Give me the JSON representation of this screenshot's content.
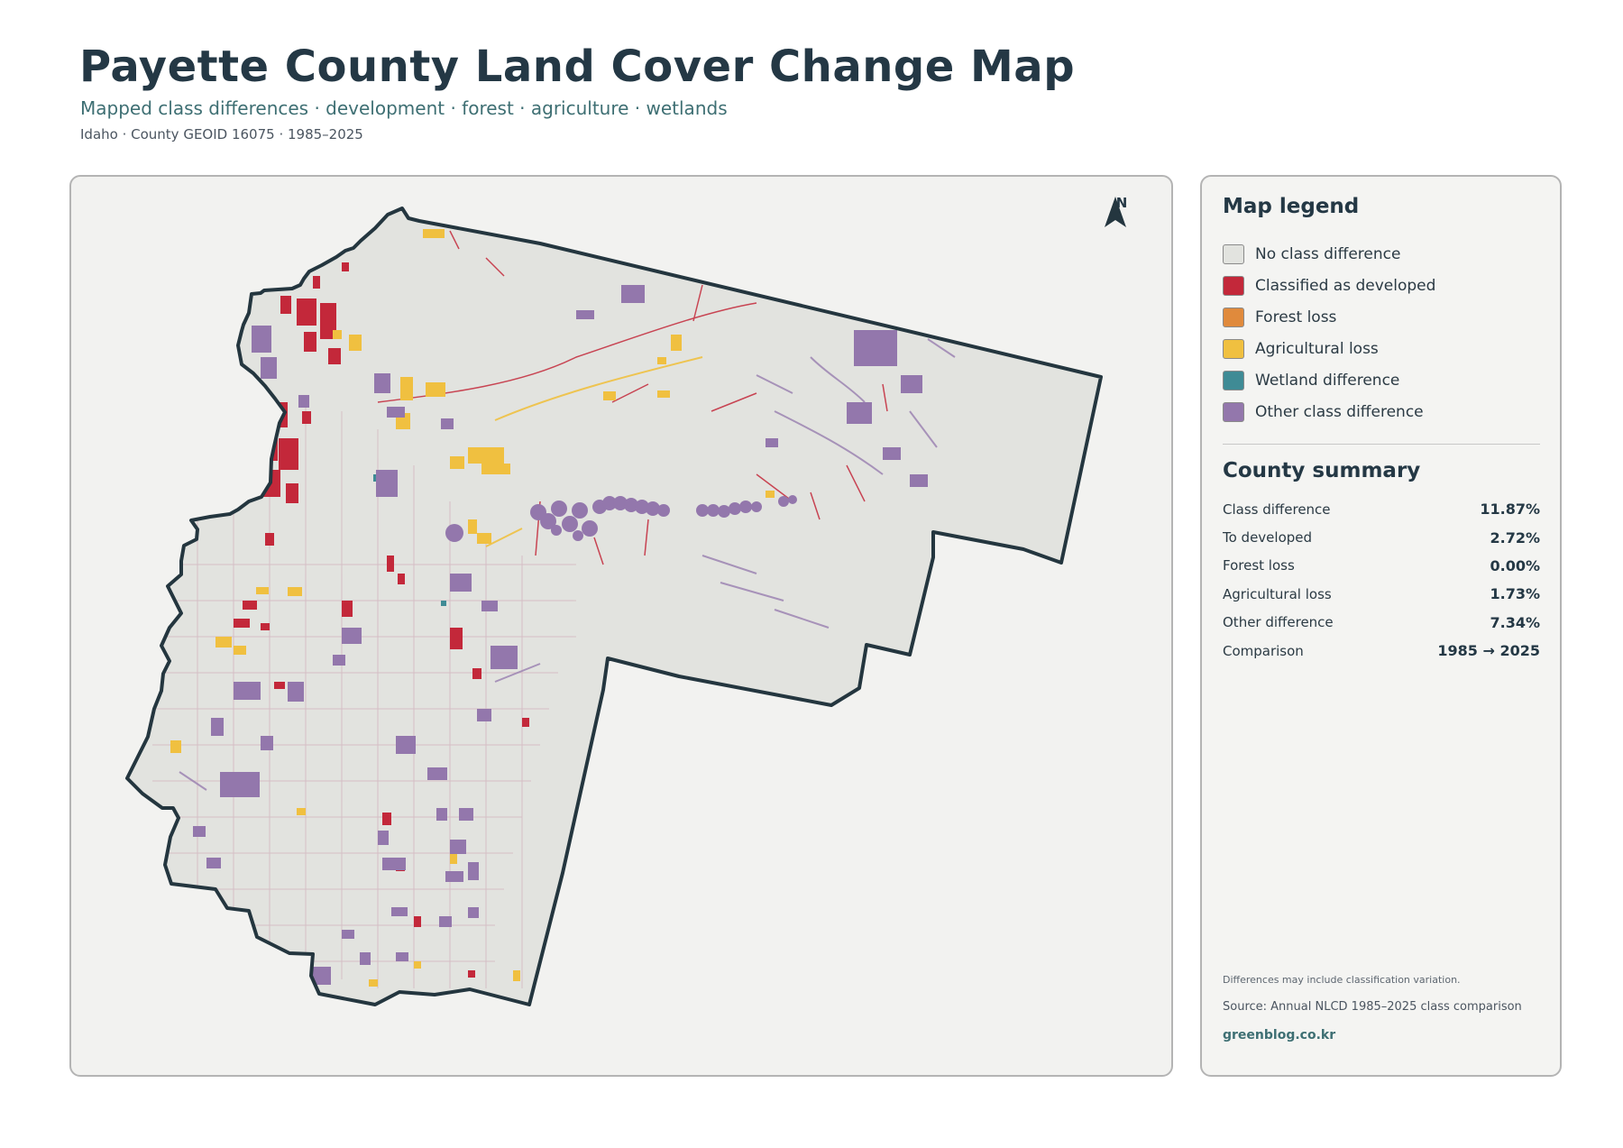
{
  "header": {
    "title": "Payette County Land Cover Change Map",
    "subtitle": "Mapped class differences · development · forest · agriculture · wetlands",
    "meta": "Idaho · County GEOID 16075 · 1985–2025"
  },
  "map": {
    "north_label": "N",
    "colors": {
      "no_difference": "#e2e3df",
      "developed": "#c3283a",
      "forest_loss": "#e08a3c",
      "agricultural_loss": "#f0c040",
      "wetland": "#3f8b95",
      "other": "#9377ac",
      "boundary": "#24363f"
    }
  },
  "legend": {
    "heading": "Map legend",
    "items": [
      {
        "label": "No class difference",
        "color": "#e2e3df"
      },
      {
        "label": "Classified as developed",
        "color": "#c3283a"
      },
      {
        "label": "Forest loss",
        "color": "#e08a3c"
      },
      {
        "label": "Agricultural loss",
        "color": "#f0c040"
      },
      {
        "label": "Wetland difference",
        "color": "#3f8b95"
      },
      {
        "label": "Other class difference",
        "color": "#9377ac"
      }
    ]
  },
  "summary": {
    "heading": "County summary",
    "rows": [
      {
        "label": "Class difference",
        "value": "11.87%"
      },
      {
        "label": "To developed",
        "value": "2.72%"
      },
      {
        "label": "Forest loss",
        "value": "0.00%"
      },
      {
        "label": "Agricultural loss",
        "value": "1.73%"
      },
      {
        "label": "Other difference",
        "value": "7.34%"
      },
      {
        "label": "Comparison",
        "value": "1985 → 2025"
      }
    ]
  },
  "footer": {
    "note": "Differences may include classification variation.",
    "source": "Source: Annual NLCD 1985–2025 class comparison",
    "brand": "greenblog.co.kr"
  }
}
